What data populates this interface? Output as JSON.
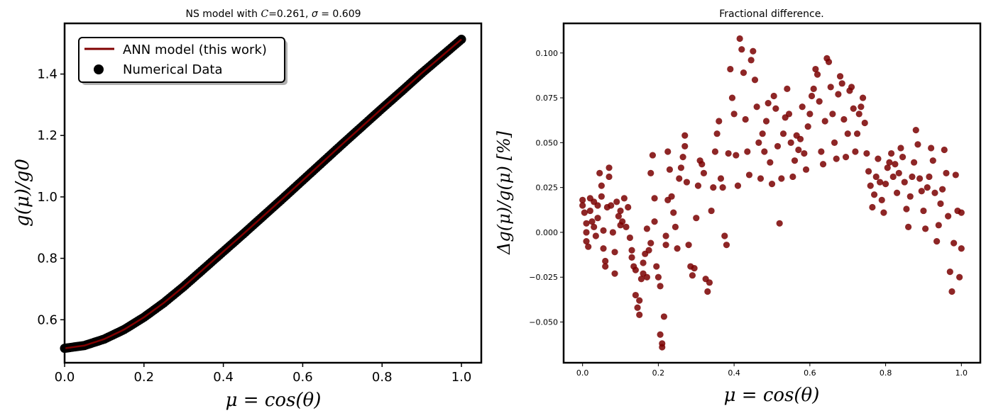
{
  "colors": {
    "line": "#800000",
    "marker_left": "#000000",
    "marker_right": "#7a0000",
    "axes": "#000000"
  },
  "chart_data": [
    {
      "type": "scatter",
      "title": "NS model with C=0.261, σ = 0.609",
      "title_parts": {
        "prefix": "NS model with ",
        "c_symbol": "C",
        "c_value": "=0.261, ",
        "sigma_symbol": "σ",
        "sigma_value": " = 0.609"
      },
      "xlabel": "μ = cos(θ)",
      "ylabel": "g(μ)/g0",
      "xlim": [
        0.0,
        1.05
      ],
      "ylim": [
        0.46,
        1.565
      ],
      "xticks": [
        "0.0",
        "0.2",
        "0.4",
        "0.6",
        "0.8",
        "1.0"
      ],
      "yticks": [
        "0.6",
        "0.8",
        "1.0",
        "1.2",
        "1.4"
      ],
      "legend": {
        "position": "top-left",
        "entries": [
          "ANN model (this work)",
          "Numerical Data"
        ]
      },
      "grid": false,
      "series": [
        {
          "name": "ANN model (this work)",
          "kind": "line",
          "x": [
            0.0,
            0.05,
            0.1,
            0.15,
            0.2,
            0.25,
            0.3,
            0.35,
            0.4,
            0.45,
            0.5,
            0.55,
            0.6,
            0.65,
            0.7,
            0.75,
            0.8,
            0.85,
            0.9,
            0.95,
            1.0
          ],
          "y": [
            0.507,
            0.516,
            0.537,
            0.568,
            0.608,
            0.655,
            0.708,
            0.765,
            0.822,
            0.879,
            0.937,
            0.995,
            1.054,
            1.113,
            1.172,
            1.23,
            1.288,
            1.345,
            1.403,
            1.458,
            1.513
          ]
        },
        {
          "name": "Numerical Data",
          "kind": "scatter",
          "x": [
            0.0,
            0.05,
            0.1,
            0.15,
            0.2,
            0.25,
            0.3,
            0.35,
            0.4,
            0.45,
            0.5,
            0.55,
            0.6,
            0.65,
            0.7,
            0.75,
            0.8,
            0.85,
            0.9,
            0.95,
            1.0
          ],
          "y": [
            0.507,
            0.516,
            0.537,
            0.568,
            0.608,
            0.655,
            0.708,
            0.765,
            0.822,
            0.879,
            0.937,
            0.995,
            1.054,
            1.113,
            1.172,
            1.23,
            1.288,
            1.345,
            1.403,
            1.458,
            1.513
          ]
        }
      ]
    },
    {
      "type": "scatter",
      "title": "Fractional difference.",
      "xlabel": "μ = cos(θ)",
      "ylabel": "Δg(μ)/g(μ) [%]",
      "xlim": [
        -0.05,
        1.05
      ],
      "ylim": [
        -0.0727,
        0.1165
      ],
      "xticks": [
        "0.0",
        "0.2",
        "0.4",
        "0.6",
        "0.8",
        "1.0"
      ],
      "yticks": [
        "−0.050",
        "−0.025",
        "0.000",
        "0.025",
        "0.050",
        "0.075",
        "0.100"
      ],
      "grid": false,
      "series": [
        {
          "kind": "scatter",
          "points": [
            [
              0.0,
              0.018
            ],
            [
              0.0,
              0.015
            ],
            [
              0.005,
              0.011
            ],
            [
              0.01,
              0.005
            ],
            [
              0.01,
              0.0
            ],
            [
              0.01,
              -0.005
            ],
            [
              0.015,
              -0.008
            ],
            [
              0.02,
              0.012
            ],
            [
              0.02,
              0.019
            ],
            [
              0.025,
              0.006
            ],
            [
              0.03,
              0.003
            ],
            [
              0.03,
              0.017
            ],
            [
              0.035,
              -0.002
            ],
            [
              0.04,
              0.015
            ],
            [
              0.04,
              0.008
            ],
            [
              0.045,
              0.033
            ],
            [
              0.05,
              0.026
            ],
            [
              0.05,
              0.02
            ],
            [
              0.055,
              0.001
            ],
            [
              0.055,
              -0.009
            ],
            [
              0.06,
              -0.016
            ],
            [
              0.06,
              -0.019
            ],
            [
              0.065,
              0.014
            ],
            [
              0.07,
              0.036
            ],
            [
              0.07,
              0.031
            ],
            [
              0.075,
              0.015
            ],
            [
              0.08,
              0.0
            ],
            [
              0.085,
              -0.011
            ],
            [
              0.085,
              -0.023
            ],
            [
              0.09,
              0.017
            ],
            [
              0.095,
              0.009
            ],
            [
              0.1,
              0.004
            ],
            [
              0.1,
              0.012
            ],
            [
              0.105,
              0.006
            ],
            [
              0.11,
              0.019
            ],
            [
              0.115,
              0.003
            ],
            [
              0.12,
              0.014
            ],
            [
              0.125,
              -0.003
            ],
            [
              0.13,
              -0.01
            ],
            [
              0.13,
              -0.014
            ],
            [
              0.135,
              -0.019
            ],
            [
              0.14,
              -0.021
            ],
            [
              0.14,
              -0.035
            ],
            [
              0.145,
              -0.042
            ],
            [
              0.15,
              -0.046
            ],
            [
              0.15,
              -0.038
            ],
            [
              0.155,
              -0.026
            ],
            [
              0.16,
              -0.017
            ],
            [
              0.16,
              -0.023
            ],
            [
              0.165,
              -0.012
            ],
            [
              0.17,
              -0.025
            ],
            [
              0.17,
              0.002
            ],
            [
              0.175,
              -0.01
            ],
            [
              0.18,
              -0.006
            ],
            [
              0.18,
              0.033
            ],
            [
              0.185,
              0.043
            ],
            [
              0.19,
              0.019
            ],
            [
              0.19,
              0.006
            ],
            [
              0.195,
              -0.019
            ],
            [
              0.2,
              -0.025
            ],
            [
              0.205,
              -0.03
            ],
            [
              0.205,
              -0.057
            ],
            [
              0.21,
              -0.062
            ],
            [
              0.21,
              -0.064
            ],
            [
              0.215,
              -0.047
            ],
            [
              0.22,
              -0.002
            ],
            [
              0.22,
              -0.007
            ],
            [
              0.225,
              0.018
            ],
            [
              0.225,
              0.045
            ],
            [
              0.23,
              0.035
            ],
            [
              0.235,
              0.02
            ],
            [
              0.24,
              0.011
            ],
            [
              0.245,
              0.003
            ],
            [
              0.25,
              -0.009
            ],
            [
              0.255,
              0.03
            ],
            [
              0.26,
              0.036
            ],
            [
              0.265,
              0.042
            ],
            [
              0.27,
              0.048
            ],
            [
              0.27,
              0.054
            ],
            [
              0.275,
              0.028
            ],
            [
              0.28,
              -0.007
            ],
            [
              0.285,
              -0.019
            ],
            [
              0.29,
              -0.024
            ],
            [
              0.295,
              -0.02
            ],
            [
              0.3,
              0.008
            ],
            [
              0.305,
              0.026
            ],
            [
              0.31,
              0.04
            ],
            [
              0.315,
              0.038
            ],
            [
              0.32,
              0.033
            ],
            [
              0.325,
              -0.026
            ],
            [
              0.33,
              -0.033
            ],
            [
              0.335,
              -0.028
            ],
            [
              0.34,
              0.012
            ],
            [
              0.345,
              0.025
            ],
            [
              0.35,
              0.045
            ],
            [
              0.355,
              0.055
            ],
            [
              0.36,
              0.062
            ],
            [
              0.365,
              0.03
            ],
            [
              0.37,
              0.025
            ],
            [
              0.375,
              -0.002
            ],
            [
              0.38,
              -0.007
            ],
            [
              0.385,
              0.044
            ],
            [
              0.39,
              0.091
            ],
            [
              0.395,
              0.075
            ],
            [
              0.4,
              0.066
            ],
            [
              0.405,
              0.043
            ],
            [
              0.41,
              0.026
            ],
            [
              0.415,
              0.108
            ],
            [
              0.42,
              0.102
            ],
            [
              0.425,
              0.089
            ],
            [
              0.43,
              0.063
            ],
            [
              0.435,
              0.045
            ],
            [
              0.44,
              0.032
            ],
            [
              0.445,
              0.096
            ],
            [
              0.45,
              0.101
            ],
            [
              0.455,
              0.085
            ],
            [
              0.46,
              0.07
            ],
            [
              0.465,
              0.05
            ],
            [
              0.47,
              0.03
            ],
            [
              0.475,
              0.055
            ],
            [
              0.48,
              0.045
            ],
            [
              0.485,
              0.062
            ],
            [
              0.49,
              0.072
            ],
            [
              0.495,
              0.039
            ],
            [
              0.5,
              0.027
            ],
            [
              0.505,
              0.076
            ],
            [
              0.51,
              0.069
            ],
            [
              0.515,
              0.048
            ],
            [
              0.52,
              0.005
            ],
            [
              0.525,
              0.03
            ],
            [
              0.53,
              0.055
            ],
            [
              0.535,
              0.064
            ],
            [
              0.54,
              0.08
            ],
            [
              0.545,
              0.066
            ],
            [
              0.55,
              0.05
            ],
            [
              0.555,
              0.031
            ],
            [
              0.56,
              0.04
            ],
            [
              0.565,
              0.054
            ],
            [
              0.57,
              0.046
            ],
            [
              0.575,
              0.052
            ],
            [
              0.58,
              0.07
            ],
            [
              0.585,
              0.044
            ],
            [
              0.59,
              0.035
            ],
            [
              0.595,
              0.059
            ],
            [
              0.6,
              0.066
            ],
            [
              0.605,
              0.076
            ],
            [
              0.61,
              0.08
            ],
            [
              0.615,
              0.091
            ],
            [
              0.62,
              0.088
            ],
            [
              0.625,
              0.073
            ],
            [
              0.63,
              0.045
            ],
            [
              0.635,
              0.038
            ],
            [
              0.64,
              0.062
            ],
            [
              0.645,
              0.097
            ],
            [
              0.65,
              0.095
            ],
            [
              0.655,
              0.081
            ],
            [
              0.66,
              0.066
            ],
            [
              0.665,
              0.05
            ],
            [
              0.67,
              0.041
            ],
            [
              0.675,
              0.077
            ],
            [
              0.68,
              0.087
            ],
            [
              0.685,
              0.083
            ],
            [
              0.69,
              0.063
            ],
            [
              0.695,
              0.042
            ],
            [
              0.7,
              0.055
            ],
            [
              0.705,
              0.079
            ],
            [
              0.71,
              0.081
            ],
            [
              0.715,
              0.069
            ],
            [
              0.72,
              0.045
            ],
            [
              0.725,
              0.055
            ],
            [
              0.73,
              0.066
            ],
            [
              0.735,
              0.07
            ],
            [
              0.74,
              0.075
            ],
            [
              0.745,
              0.061
            ],
            [
              0.75,
              0.044
            ],
            [
              0.755,
              0.034
            ],
            [
              0.76,
              0.026
            ],
            [
              0.765,
              0.014
            ],
            [
              0.77,
              0.021
            ],
            [
              0.775,
              0.031
            ],
            [
              0.78,
              0.041
            ],
            [
              0.785,
              0.028
            ],
            [
              0.79,
              0.018
            ],
            [
              0.795,
              0.011
            ],
            [
              0.8,
              0.027
            ],
            [
              0.805,
              0.036
            ],
            [
              0.81,
              0.039
            ],
            [
              0.815,
              0.044
            ],
            [
              0.82,
              0.031
            ],
            [
              0.825,
              0.038
            ],
            [
              0.83,
              0.022
            ],
            [
              0.835,
              0.033
            ],
            [
              0.84,
              0.047
            ],
            [
              0.845,
              0.042
            ],
            [
              0.85,
              0.028
            ],
            [
              0.855,
              0.013
            ],
            [
              0.86,
              0.003
            ],
            [
              0.865,
              0.02
            ],
            [
              0.87,
              0.031
            ],
            [
              0.875,
              0.039
            ],
            [
              0.88,
              0.057
            ],
            [
              0.885,
              0.049
            ],
            [
              0.89,
              0.03
            ],
            [
              0.895,
              0.023
            ],
            [
              0.9,
              0.012
            ],
            [
              0.905,
              0.002
            ],
            [
              0.91,
              0.025
            ],
            [
              0.915,
              0.031
            ],
            [
              0.92,
              0.047
            ],
            [
              0.925,
              0.04
            ],
            [
              0.93,
              0.022
            ],
            [
              0.935,
              -0.005
            ],
            [
              0.94,
              0.004
            ],
            [
              0.945,
              0.016
            ],
            [
              0.95,
              0.024
            ],
            [
              0.955,
              0.046
            ],
            [
              0.96,
              0.033
            ],
            [
              0.965,
              0.009
            ],
            [
              0.97,
              -0.022
            ],
            [
              0.975,
              -0.033
            ],
            [
              0.98,
              -0.006
            ],
            [
              0.985,
              0.032
            ],
            [
              0.99,
              0.012
            ],
            [
              0.995,
              -0.025
            ],
            [
              1.0,
              -0.009
            ],
            [
              1.0,
              0.011
            ]
          ]
        }
      ]
    }
  ]
}
